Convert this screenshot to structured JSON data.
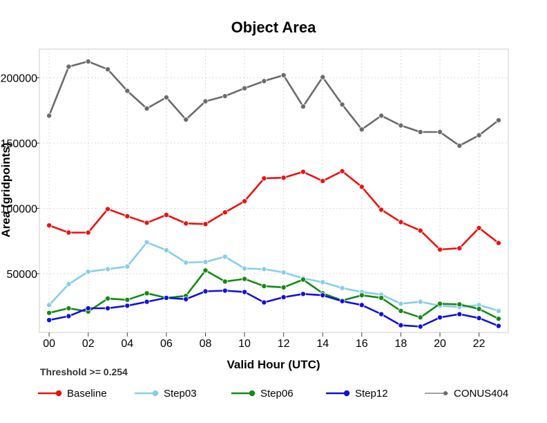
{
  "chart_data": {
    "type": "line",
    "title": "Object Area",
    "xlabel": "Valid Hour (UTC)",
    "ylabel": "Area (gridpoints)",
    "annotation": "Threshold >= 0.254",
    "x": [
      0,
      1,
      2,
      3,
      4,
      5,
      6,
      7,
      8,
      9,
      10,
      11,
      12,
      13,
      14,
      15,
      16,
      17,
      18,
      19,
      20,
      21,
      22,
      23
    ],
    "xlim": [
      -0.5,
      23.5
    ],
    "ylim": [
      5000,
      222000
    ],
    "xticks": [
      0,
      2,
      4,
      6,
      8,
      10,
      12,
      14,
      16,
      18,
      20,
      22
    ],
    "xtick_labels": [
      "00",
      "02",
      "04",
      "06",
      "08",
      "10",
      "12",
      "14",
      "16",
      "18",
      "20",
      "22"
    ],
    "yticks": [
      50000,
      100000,
      150000,
      200000
    ],
    "ytick_labels": [
      "50000",
      "100000",
      "150000",
      "200000"
    ],
    "grid": true,
    "legend_position": "bottom",
    "series": [
      {
        "name": "Baseline",
        "color": "#ee1111",
        "values": [
          87000,
          81500,
          81500,
          99500,
          94000,
          89000,
          95000,
          88500,
          88000,
          97000,
          105500,
          123000,
          123500,
          128000,
          121000,
          128500,
          116500,
          99000,
          89500,
          83000,
          68500,
          69500,
          85000,
          73500
        ]
      },
      {
        "name": "Step03",
        "color": "#87ceeb",
        "values": [
          26000,
          42000,
          51500,
          53500,
          55500,
          74000,
          68000,
          58500,
          59000,
          63000,
          54000,
          53500,
          51000,
          46500,
          43500,
          39000,
          36000,
          34000,
          27000,
          28500,
          25500,
          24500,
          26000,
          21500
        ]
      },
      {
        "name": "Step06",
        "color": "#138a13",
        "values": [
          20000,
          23500,
          21000,
          31000,
          30000,
          35000,
          31500,
          33000,
          52500,
          44000,
          46000,
          40500,
          39500,
          45500,
          35000,
          29500,
          33500,
          31500,
          21500,
          16500,
          27000,
          26500,
          23000,
          15500
        ]
      },
      {
        "name": "Step12",
        "color": "#1010dd",
        "values": [
          14500,
          17500,
          23500,
          23500,
          25500,
          28500,
          31500,
          30500,
          36500,
          37000,
          36000,
          28000,
          32000,
          34500,
          33500,
          29000,
          26000,
          19000,
          10500,
          9500,
          16500,
          19000,
          16000,
          10000
        ]
      },
      {
        "name": "CONUS404",
        "color": "#6b6b6b",
        "values": [
          171000,
          208500,
          212500,
          206500,
          190000,
          176500,
          185000,
          168000,
          182000,
          186000,
          192000,
          197500,
          202000,
          178000,
          200500,
          179500,
          160500,
          171000,
          163500,
          158500,
          158500,
          148000,
          156000,
          167500
        ]
      }
    ]
  }
}
